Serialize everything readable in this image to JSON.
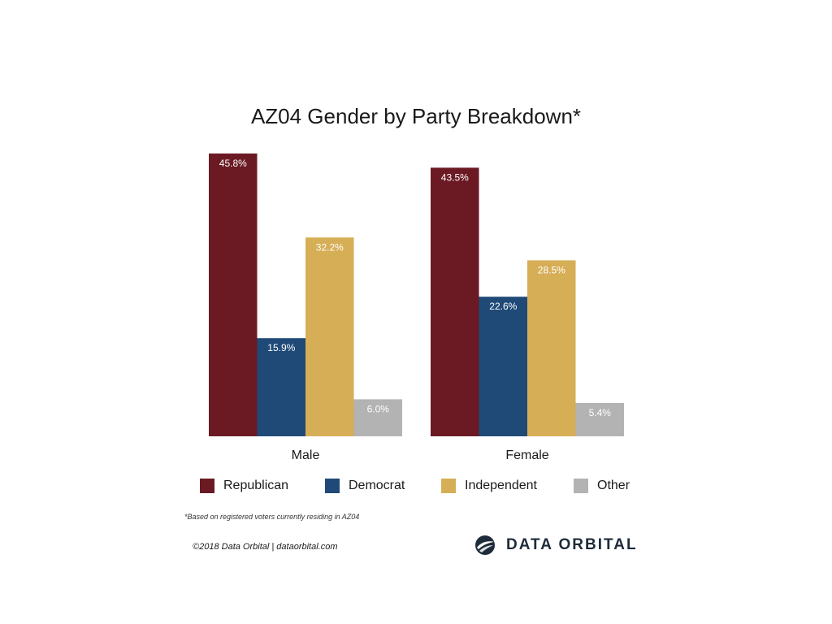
{
  "chart_data": {
    "type": "bar",
    "title": "AZ04 Gender by Party Breakdown*",
    "categories": [
      "Male",
      "Female"
    ],
    "series": [
      {
        "name": "Republican",
        "color": "#6b1a24",
        "values": [
          45.8,
          43.5
        ],
        "labels": [
          "45.8%",
          "43.5%"
        ]
      },
      {
        "name": "Democrat",
        "color": "#1f4a78",
        "values": [
          15.9,
          22.6
        ],
        "labels": [
          "15.9%",
          "22.6%"
        ]
      },
      {
        "name": "Independent",
        "color": "#d6ae56",
        "values": [
          32.2,
          28.5
        ],
        "labels": [
          "32.2%",
          "28.5%"
        ]
      },
      {
        "name": "Other",
        "color": "#b3b3b3",
        "values": [
          6.0,
          5.4
        ],
        "labels": [
          "6.0%",
          "5.4%"
        ]
      }
    ],
    "legend_position": "bottom",
    "grid": false
  },
  "footnote": "*Based on registered voters currently residing in AZ04",
  "copyright": "©2018 Data Orbital | dataorbital.com",
  "brand": {
    "name": "DATA ORBITAL",
    "logo_icon": "orbit-globe-icon",
    "color": "#1e2b3a"
  }
}
